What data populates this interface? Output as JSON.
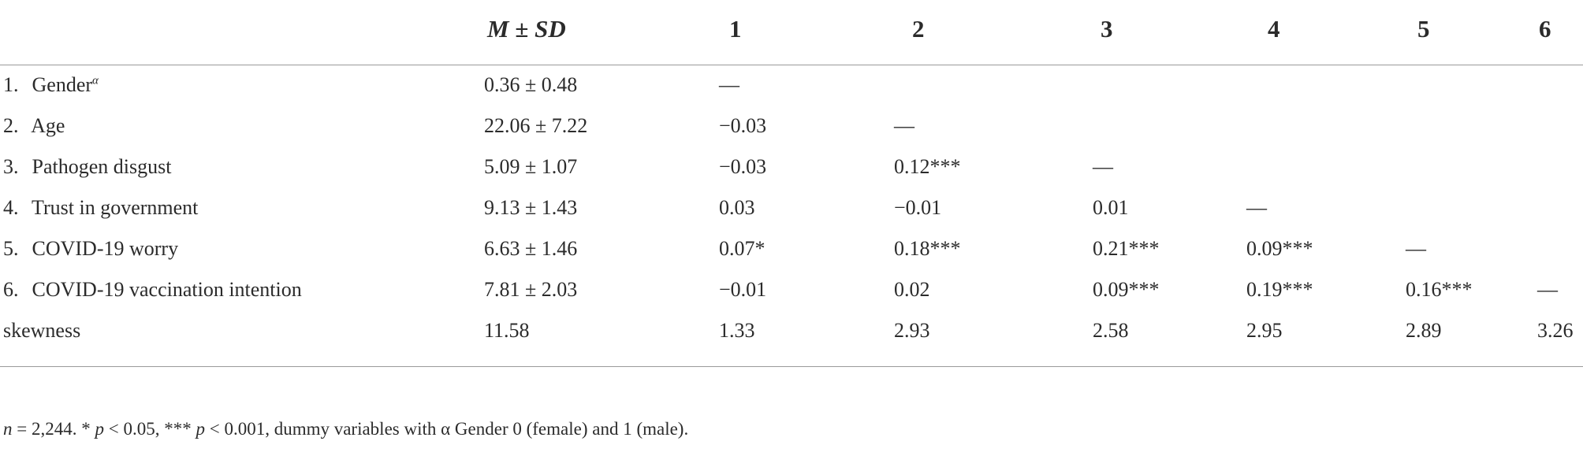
{
  "table": {
    "headers": {
      "m": "M",
      "pm": "±",
      "sd": "SD",
      "cols": [
        "1",
        "2",
        "3",
        "4",
        "5",
        "6"
      ]
    },
    "rows": [
      {
        "num": "1.",
        "label": "Gender",
        "sup": "α",
        "msd": "0.36 ± 0.48",
        "cells": [
          "—",
          "",
          "",
          "",
          "",
          ""
        ]
      },
      {
        "num": "2.",
        "label": "Age",
        "sup": "",
        "msd": "22.06 ± 7.22",
        "cells": [
          "−0.03",
          "—",
          "",
          "",
          "",
          ""
        ]
      },
      {
        "num": "3.",
        "label": "Pathogen disgust",
        "sup": "",
        "msd": "5.09 ± 1.07",
        "cells": [
          "−0.03",
          "0.12***",
          "—",
          "",
          "",
          ""
        ]
      },
      {
        "num": "4.",
        "label": "Trust in government",
        "sup": "",
        "msd": "9.13 ± 1.43",
        "cells": [
          "0.03",
          "−0.01",
          "0.01",
          "—",
          "",
          ""
        ]
      },
      {
        "num": "5.",
        "label": "COVID-19 worry",
        "sup": "",
        "msd": "6.63 ± 1.46",
        "cells": [
          "0.07*",
          "0.18***",
          "0.21***",
          "0.09***",
          "—",
          ""
        ]
      },
      {
        "num": "6.",
        "label": "COVID-19 vaccination intention",
        "sup": "",
        "msd": "7.81 ± 2.03",
        "cells": [
          "−0.01",
          "0.02",
          "0.09***",
          "0.19***",
          "0.16***",
          "—"
        ]
      }
    ],
    "skew": {
      "label": "skewness",
      "msd": "11.58",
      "cells": [
        "1.33",
        "2.93",
        "2.58",
        "2.95",
        "2.89",
        "3.26"
      ]
    }
  },
  "note": {
    "n_italic": "n",
    "n_rest": " = 2,244. * ",
    "p1": "p",
    "p1_rest": " < 0.05, *** ",
    "p2": "p",
    "p2_rest": " < 0.001, dummy variables with α Gender 0 (female) and 1 (male)."
  }
}
